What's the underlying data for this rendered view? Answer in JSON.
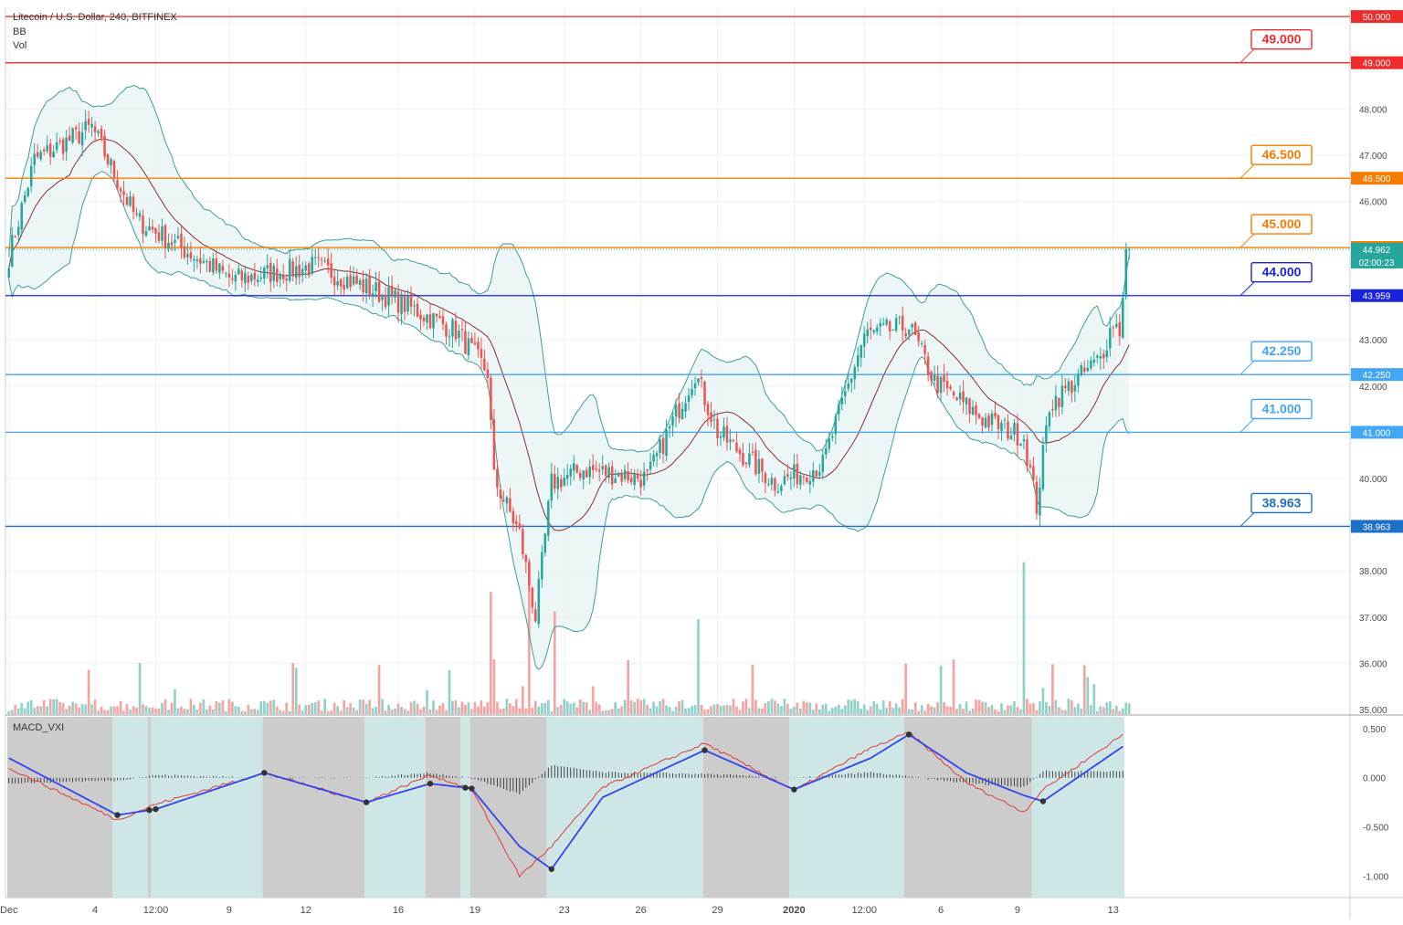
{
  "legend": {
    "title": "Litecoin / U.S. Dollar, 240, BITFINEX",
    "indicator_1": "BB",
    "indicator_2": "Vol",
    "macd_label": "MACD_VXI"
  },
  "colors": {
    "up": "#26a69a",
    "down": "#ef5350",
    "bb_band": "#3d9c9a",
    "bb_basis": "#8b2d2d",
    "macd_line": "#3344ee",
    "signal_line": "#e03b3b",
    "bg_bull": "#cfe6e6",
    "bg_bear": "#cccccc"
  },
  "chart_data": {
    "type": "candlestick",
    "instrument": "Litecoin / U.S. Dollar",
    "timeframe": "240",
    "exchange": "BITFINEX",
    "x_ticks": [
      "Dec",
      "4",
      "12:00",
      "9",
      "12",
      "16",
      "19",
      "23",
      "26",
      "29",
      "2020",
      "12:00",
      "6",
      "9",
      "13"
    ],
    "y_ticks": [
      "35.000",
      "36.000",
      "37.000",
      "38.000",
      "39.000",
      "40.000",
      "41.000",
      "42.000",
      "43.000",
      "44.000",
      "45.000",
      "46.000",
      "47.000",
      "48.000",
      "49.000",
      "50.000"
    ],
    "ylim": [
      34.9,
      50.2
    ],
    "macd_ticks": [
      "0.500",
      "0.000",
      "-0.500",
      "-1.000"
    ],
    "macd_ylim": [
      -1.22,
      0.62
    ],
    "horizontal_levels": [
      {
        "price": 50.0,
        "axis_label": "50.000",
        "color": "#ef2b2b"
      },
      {
        "price": 49.0,
        "axis_label": "49.000",
        "callout": "49.000",
        "color": "#ef2b2b"
      },
      {
        "price": 46.5,
        "axis_label": "46.500",
        "callout": "46.500",
        "color": "#f57c00"
      },
      {
        "price": 45.0,
        "axis_label": "45.000",
        "callout": "45.000",
        "color": "#f57c00"
      },
      {
        "price": 43.959,
        "axis_label": "43.959",
        "callout": "44.000",
        "color": "#1a23d9"
      },
      {
        "price": 42.25,
        "axis_label": "42.250",
        "callout": "42.250",
        "color": "#42a5f5"
      },
      {
        "price": 41.0,
        "axis_label": "41.000",
        "callout": "41.000",
        "color": "#42a5f5"
      },
      {
        "price": 38.963,
        "axis_label": "38.963",
        "callout": "38.963",
        "color": "#1e6fc7"
      }
    ],
    "current_price": "44.962",
    "countdown": "02:00:23",
    "key_points": [
      {
        "x": 0,
        "price": 44.8
      },
      {
        "x": 8,
        "price": 46.9
      },
      {
        "x": 26,
        "price": 47.6
      },
      {
        "x": 40,
        "price": 45.6
      },
      {
        "x": 70,
        "price": 44.3
      },
      {
        "x": 96,
        "price": 44.6
      },
      {
        "x": 120,
        "price": 43.9
      },
      {
        "x": 140,
        "price": 43.2
      },
      {
        "x": 150,
        "price": 42.3
      },
      {
        "x": 152,
        "price": 40.0
      },
      {
        "x": 160,
        "price": 38.8
      },
      {
        "x": 165,
        "price": 37.0
      },
      {
        "x": 170,
        "price": 39.9
      },
      {
        "x": 180,
        "price": 40.2
      },
      {
        "x": 200,
        "price": 40.0
      },
      {
        "x": 215,
        "price": 42.3
      },
      {
        "x": 222,
        "price": 41.0
      },
      {
        "x": 240,
        "price": 39.9
      },
      {
        "x": 255,
        "price": 40.3
      },
      {
        "x": 268,
        "price": 43.1
      },
      {
        "x": 282,
        "price": 43.3
      },
      {
        "x": 290,
        "price": 42.1
      },
      {
        "x": 305,
        "price": 41.3
      },
      {
        "x": 318,
        "price": 40.9
      },
      {
        "x": 322,
        "price": 39.4
      },
      {
        "x": 326,
        "price": 41.6
      },
      {
        "x": 342,
        "price": 42.6
      },
      {
        "x": 346,
        "price": 43.4
      },
      {
        "x": 348,
        "price": 43.2
      },
      {
        "x": 350,
        "price": 44.9
      }
    ],
    "macd_points": [
      {
        "x": 0,
        "macd": 0.2,
        "signal": 0.1
      },
      {
        "x": 34,
        "macd": -0.38,
        "signal": -0.43
      },
      {
        "x": 46,
        "macd": -0.32,
        "signal": -0.27
      },
      {
        "x": 80,
        "macd": 0.05,
        "signal": 0.05
      },
      {
        "x": 112,
        "macd": -0.25,
        "signal": -0.25
      },
      {
        "x": 132,
        "macd": -0.06,
        "signal": 0.03
      },
      {
        "x": 145,
        "macd": -0.11,
        "signal": -0.12
      },
      {
        "x": 160,
        "macd": -0.7,
        "signal": -1.0
      },
      {
        "x": 170,
        "macd": -0.93,
        "signal": -0.7
      },
      {
        "x": 186,
        "macd": -0.2,
        "signal": -0.1
      },
      {
        "x": 218,
        "macd": 0.28,
        "signal": 0.35
      },
      {
        "x": 246,
        "macd": -0.12,
        "signal": -0.13
      },
      {
        "x": 270,
        "macd": 0.2,
        "signal": 0.3
      },
      {
        "x": 282,
        "macd": 0.44,
        "signal": 0.46
      },
      {
        "x": 300,
        "macd": 0.05,
        "signal": -0.05
      },
      {
        "x": 318,
        "macd": -0.18,
        "signal": -0.35
      },
      {
        "x": 324,
        "macd": -0.24,
        "signal": -0.12
      },
      {
        "x": 350,
        "macd": 0.34,
        "signal": 0.46
      }
    ]
  }
}
